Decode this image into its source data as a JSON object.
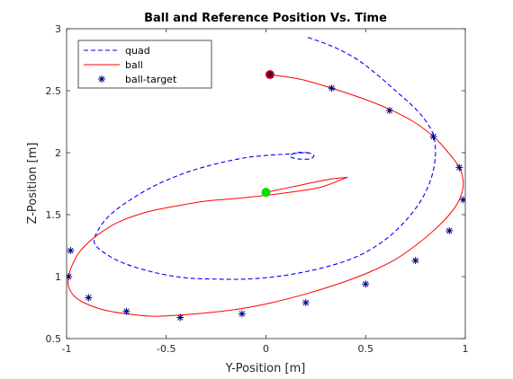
{
  "chart_data": {
    "type": "line",
    "title": "Ball and Reference Position Vs. Time",
    "xlabel": "Y-Position [m]",
    "ylabel": "Z-Position [m]",
    "xlim": [
      -1,
      1
    ],
    "ylim": [
      0.5,
      3
    ],
    "xticks": [
      -1,
      -0.5,
      0,
      0.5,
      1
    ],
    "xtick_labels": [
      "-1",
      "-0.5",
      "0",
      "0.5",
      "1"
    ],
    "yticks": [
      0.5,
      1,
      1.5,
      2,
      2.5,
      3
    ],
    "ytick_labels": [
      "0.5",
      "1",
      "1.5",
      "2",
      "2.5",
      "3"
    ],
    "grid": false,
    "legend_position": "top-left",
    "series": [
      {
        "name": "quad",
        "style": "dashed",
        "color": "#0000ff",
        "x": [
          0.21,
          0.33,
          0.45,
          0.55,
          0.65,
          0.74,
          0.8,
          0.84,
          0.85,
          0.83,
          0.78,
          0.7,
          0.6,
          0.48,
          0.35,
          0.2,
          0.05,
          -0.1,
          -0.25,
          -0.4,
          -0.55,
          -0.7,
          -0.8,
          -0.86,
          -0.84,
          -0.78,
          -0.68,
          -0.55,
          -0.4,
          -0.25,
          -0.1,
          0.02,
          0.12,
          0.2,
          0.24,
          0.22,
          0.16,
          0.12,
          0.15,
          0.22
        ],
        "y": [
          2.93,
          2.86,
          2.76,
          2.64,
          2.5,
          2.37,
          2.26,
          2.14,
          1.98,
          1.8,
          1.62,
          1.45,
          1.3,
          1.18,
          1.1,
          1.04,
          1.0,
          0.98,
          0.98,
          0.99,
          1.03,
          1.1,
          1.18,
          1.27,
          1.38,
          1.5,
          1.62,
          1.74,
          1.84,
          1.91,
          1.96,
          1.98,
          1.99,
          2.0,
          1.98,
          1.95,
          1.95,
          1.97,
          2.0,
          2.0
        ]
      },
      {
        "name": "ball",
        "style": "solid",
        "color": "#ff0000",
        "x": [
          0.02,
          0.18,
          0.33,
          0.48,
          0.62,
          0.74,
          0.84,
          0.91,
          0.97,
          0.99,
          0.97,
          0.92,
          0.84,
          0.75,
          0.64,
          0.51,
          0.36,
          0.2,
          0.03,
          -0.13,
          -0.28,
          -0.43,
          -0.57,
          -0.7,
          -0.81,
          -0.9,
          -0.96,
          -0.99,
          -0.99,
          -0.97,
          -0.93,
          -0.85,
          -0.74,
          -0.6,
          -0.45,
          -0.3,
          -0.15,
          -0.03,
          0.12,
          0.27,
          0.39,
          0.4,
          0.3,
          0.15,
          0.03,
          0.0
        ],
        "y": [
          2.63,
          2.59,
          2.52,
          2.44,
          2.35,
          2.25,
          2.13,
          2.01,
          1.88,
          1.75,
          1.62,
          1.5,
          1.37,
          1.25,
          1.13,
          1.03,
          0.94,
          0.86,
          0.79,
          0.74,
          0.71,
          0.69,
          0.68,
          0.7,
          0.73,
          0.78,
          0.84,
          0.92,
          1.0,
          1.1,
          1.21,
          1.33,
          1.44,
          1.52,
          1.57,
          1.61,
          1.63,
          1.65,
          1.68,
          1.72,
          1.79,
          1.8,
          1.78,
          1.73,
          1.69,
          1.68
        ]
      },
      {
        "name": "ball-target",
        "style": "markers",
        "color": "#00007f",
        "x": [
          0.02,
          0.33,
          0.62,
          0.84,
          0.97,
          0.99,
          0.92,
          0.75,
          0.5,
          0.2,
          -0.12,
          -0.43,
          -0.7,
          -0.89,
          -0.99,
          -0.98
        ],
        "y": [
          2.63,
          2.52,
          2.34,
          2.13,
          1.88,
          1.62,
          1.37,
          1.13,
          0.94,
          0.79,
          0.7,
          0.67,
          0.72,
          0.83,
          1.0,
          1.21
        ]
      }
    ],
    "start_marker": {
      "x": 0.02,
      "y": 2.63,
      "color": "#ff0000"
    },
    "end_marker": {
      "x": 0.0,
      "y": 1.68,
      "color": "#00e000"
    }
  }
}
